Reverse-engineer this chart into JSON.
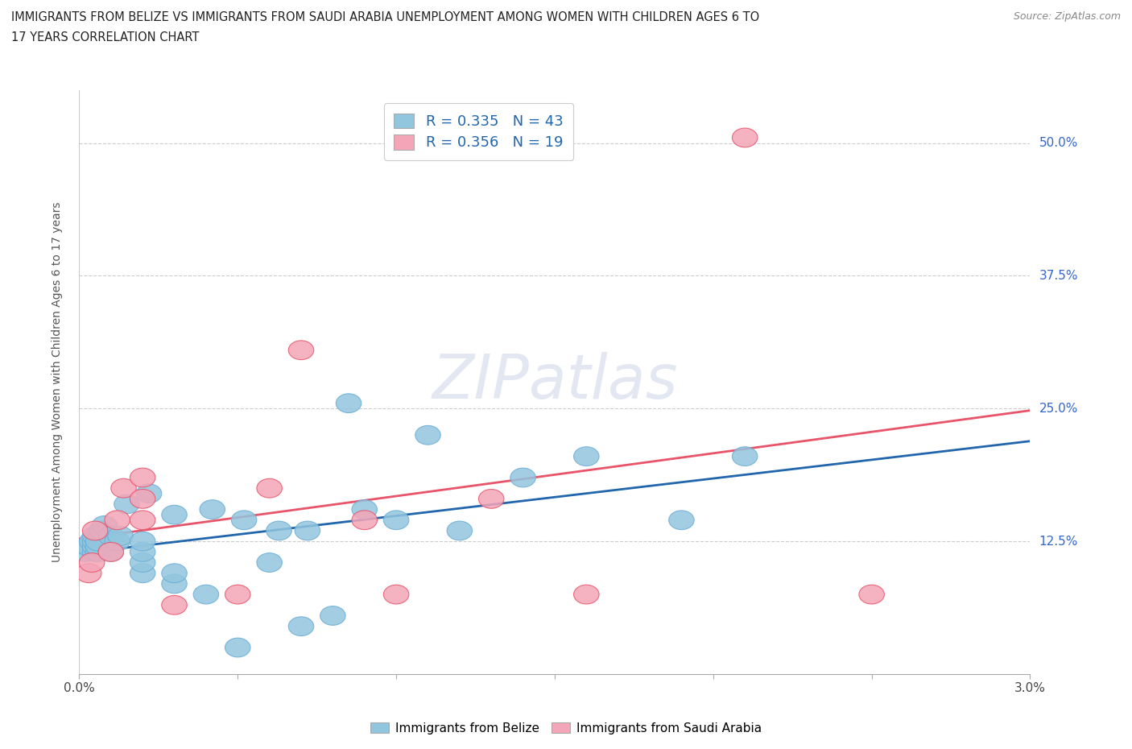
{
  "title_line1": "IMMIGRANTS FROM BELIZE VS IMMIGRANTS FROM SAUDI ARABIA UNEMPLOYMENT AMONG WOMEN WITH CHILDREN AGES 6 TO",
  "title_line2": "17 YEARS CORRELATION CHART",
  "source": "Source: ZipAtlas.com",
  "ylabel": "Unemployment Among Women with Children Ages 6 to 17 years",
  "xlim": [
    0.0,
    0.03
  ],
  "ylim": [
    0.0,
    0.55
  ],
  "yticks": [
    0.0,
    0.125,
    0.25,
    0.375,
    0.5
  ],
  "ytick_labels": [
    "",
    "12.5%",
    "25.0%",
    "37.5%",
    "50.0%"
  ],
  "xticks": [
    0.0,
    0.005,
    0.01,
    0.015,
    0.02,
    0.025,
    0.03
  ],
  "xtick_labels": [
    "0.0%",
    "",
    "",
    "",
    "",
    "",
    "3.0%"
  ],
  "belize_color": "#92c5de",
  "saudi_color": "#f4a6b8",
  "belize_edge_color": "#6baed6",
  "saudi_edge_color": "#e8546a",
  "belize_line_color": "#2166ac",
  "saudi_line_color": "#e8546a",
  "belize_R": 0.335,
  "belize_N": 43,
  "saudi_R": 0.356,
  "saudi_N": 19,
  "watermark": "ZIPatlas",
  "belize_x": [
    0.0002,
    0.0003,
    0.0004,
    0.0005,
    0.0005,
    0.0005,
    0.0005,
    0.0006,
    0.0006,
    0.0006,
    0.0007,
    0.0008,
    0.001,
    0.001,
    0.0012,
    0.0013,
    0.0015,
    0.002,
    0.002,
    0.002,
    0.002,
    0.0022,
    0.003,
    0.003,
    0.003,
    0.004,
    0.0042,
    0.005,
    0.0052,
    0.006,
    0.0063,
    0.007,
    0.0072,
    0.008,
    0.0085,
    0.009,
    0.01,
    0.011,
    0.012,
    0.014,
    0.016,
    0.019,
    0.021
  ],
  "belize_y": [
    0.115,
    0.12,
    0.125,
    0.115,
    0.12,
    0.125,
    0.13,
    0.115,
    0.12,
    0.125,
    0.135,
    0.14,
    0.115,
    0.13,
    0.125,
    0.13,
    0.16,
    0.095,
    0.105,
    0.115,
    0.125,
    0.17,
    0.085,
    0.095,
    0.15,
    0.075,
    0.155,
    0.025,
    0.145,
    0.105,
    0.135,
    0.045,
    0.135,
    0.055,
    0.255,
    0.155,
    0.145,
    0.225,
    0.135,
    0.185,
    0.205,
    0.145,
    0.205
  ],
  "saudi_x": [
    0.0003,
    0.0004,
    0.0005,
    0.001,
    0.0012,
    0.0014,
    0.002,
    0.002,
    0.002,
    0.003,
    0.005,
    0.006,
    0.007,
    0.009,
    0.01,
    0.013,
    0.016,
    0.021,
    0.025
  ],
  "saudi_y": [
    0.095,
    0.105,
    0.135,
    0.115,
    0.145,
    0.175,
    0.145,
    0.165,
    0.185,
    0.065,
    0.075,
    0.175,
    0.305,
    0.145,
    0.075,
    0.165,
    0.075,
    0.505,
    0.075
  ]
}
